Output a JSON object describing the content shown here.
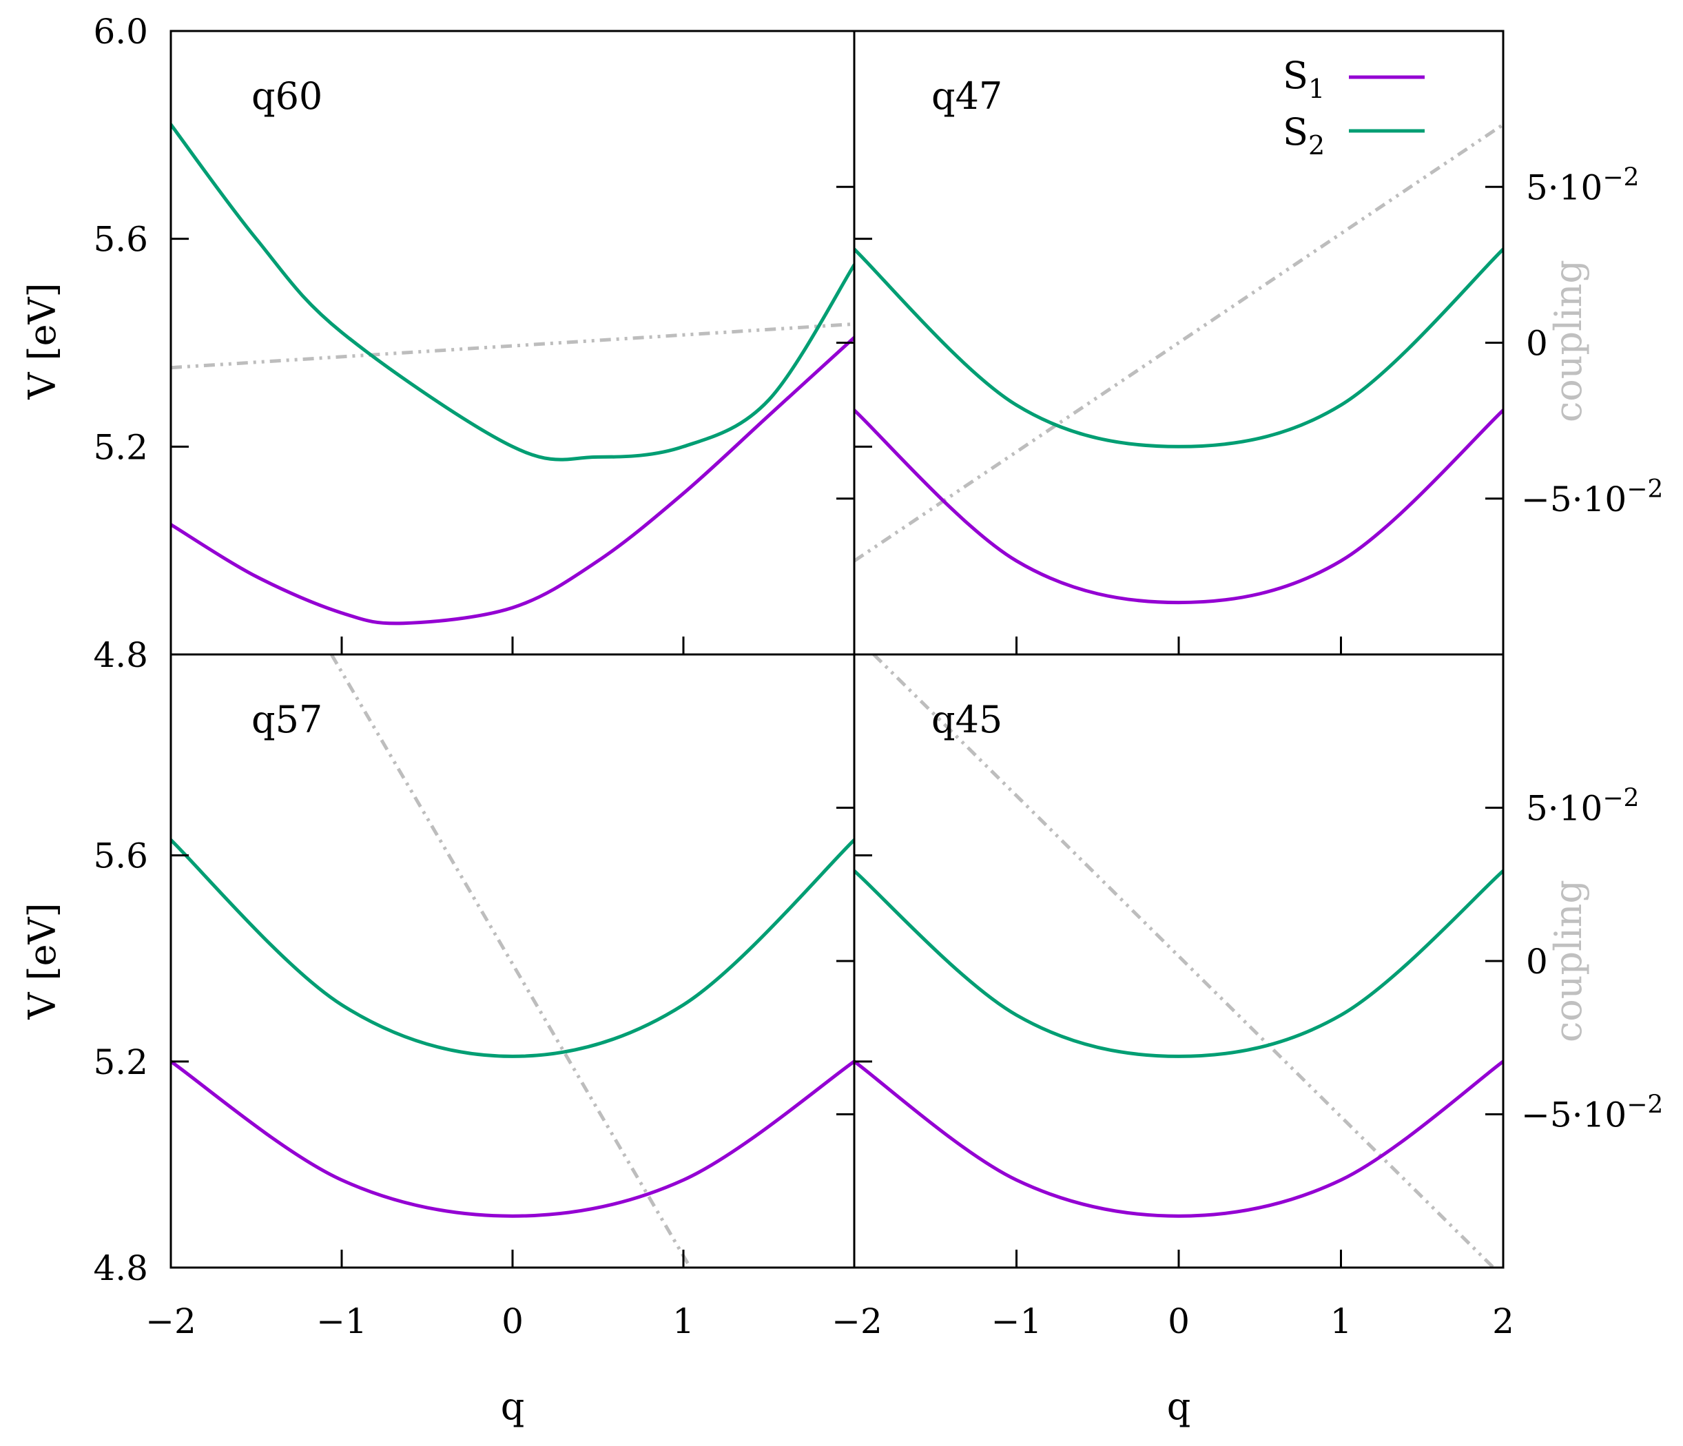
{
  "colors": {
    "S1": "#9400d3",
    "S2": "#009e73",
    "coupling": "#bdbdbd"
  },
  "chart_data": {
    "type": "line",
    "legend": {
      "position": "top-right",
      "entries": [
        "S",
        "S"
      ],
      "subscripts": [
        "1",
        "2"
      ]
    },
    "xlabel": "q",
    "ylabel": "V [eV]",
    "y2label": "coupling",
    "xlim": [
      -2,
      2
    ],
    "ylim_top": [
      4.8,
      6.0
    ],
    "ylim_bottom": [
      4.8,
      5.99
    ],
    "y2lim": [
      -0.1,
      0.1
    ],
    "x_tick_labels_left": [
      "−2",
      "−1",
      "0",
      "1"
    ],
    "x_tick_labels_right": [
      "−2",
      "−1",
      "0",
      "1",
      "2"
    ],
    "y_tick_labels_top": [
      "4.8",
      "5.2",
      "5.6",
      "6.0"
    ],
    "y_tick_labels_bottom": [
      "4.8",
      "5.2",
      "5.6"
    ],
    "y2_tick_labels": [
      "5·10",
      "0",
      "−5·10"
    ],
    "y2_tick_exponent": "−2",
    "panels": [
      {
        "label": "q60",
        "S1": {
          "x": [
            -2,
            -1.5,
            -1,
            -0.64,
            0,
            0.5,
            1,
            1.5,
            2
          ],
          "y": [
            5.05,
            4.95,
            4.88,
            4.86,
            4.89,
            4.98,
            5.11,
            5.26,
            5.41
          ]
        },
        "S2": {
          "x": [
            -2,
            -1.5,
            -1,
            0,
            0.5,
            1,
            1.5,
            2
          ],
          "y": [
            5.82,
            5.6,
            5.42,
            5.2,
            5.18,
            5.2,
            5.29,
            5.55
          ]
        },
        "coupling": {
          "x": [
            -2,
            2
          ],
          "y": [
            -0.008,
            0.006
          ]
        }
      },
      {
        "label": "q47",
        "S1": {
          "x": [
            -2,
            -1,
            0,
            1,
            2
          ],
          "y": [
            5.27,
            4.98,
            4.9,
            4.98,
            5.27
          ]
        },
        "S2": {
          "x": [
            -2,
            -1,
            0,
            1,
            2
          ],
          "y": [
            5.58,
            5.28,
            5.2,
            5.28,
            5.58
          ]
        },
        "coupling": {
          "x": [
            -2,
            2
          ],
          "y": [
            -0.07,
            0.07
          ]
        }
      },
      {
        "label": "q57",
        "S1": {
          "x": [
            -2,
            -1,
            0,
            1,
            2
          ],
          "y": [
            5.2,
            4.97,
            4.9,
            4.97,
            5.2
          ]
        },
        "S2": {
          "x": [
            -2,
            -1,
            0,
            1,
            2
          ],
          "y": [
            5.63,
            5.31,
            5.21,
            5.31,
            5.63
          ]
        },
        "coupling": {
          "x": [
            -1.06,
            1.04
          ],
          "y": [
            0.1,
            -0.1
          ]
        }
      },
      {
        "label": "q45",
        "S1": {
          "x": [
            -2,
            -1,
            0,
            1,
            2
          ],
          "y": [
            5.2,
            4.97,
            4.9,
            4.97,
            5.2
          ]
        },
        "S2": {
          "x": [
            -2,
            -1,
            0,
            1,
            2
          ],
          "y": [
            5.57,
            5.29,
            5.21,
            5.29,
            5.57
          ]
        },
        "coupling": {
          "x": [
            -1.88,
            1.94
          ],
          "y": [
            0.1,
            -0.1
          ]
        }
      }
    ]
  }
}
